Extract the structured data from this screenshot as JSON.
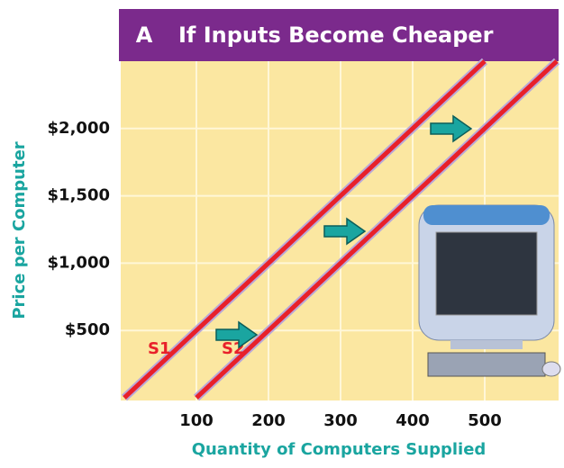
{
  "chart_data": {
    "type": "line",
    "panel": "A",
    "title": "If Inputs Become Cheaper",
    "x_label": "Quantity of Computers Supplied",
    "y_label": "Price per Computer",
    "series": [
      {
        "name": "S1",
        "color": "#e8202a",
        "x": [
          0,
          500
        ],
        "values": [
          0,
          2500
        ]
      },
      {
        "name": "S2",
        "color": "#e8202a",
        "x": [
          100,
          600
        ],
        "values": [
          0,
          2500
        ]
      }
    ],
    "xlim": [
      0,
      600
    ],
    "ylim": [
      0,
      2500
    ],
    "xticks": [
      100,
      200,
      300,
      400,
      500
    ],
    "yticks": [
      {
        "value": 500,
        "label": "$500"
      },
      {
        "value": 1000,
        "label": "$1,000"
      },
      {
        "value": 1500,
        "label": "$1,500"
      },
      {
        "value": 2000,
        "label": "$2,000"
      }
    ],
    "grid": true
  }
}
